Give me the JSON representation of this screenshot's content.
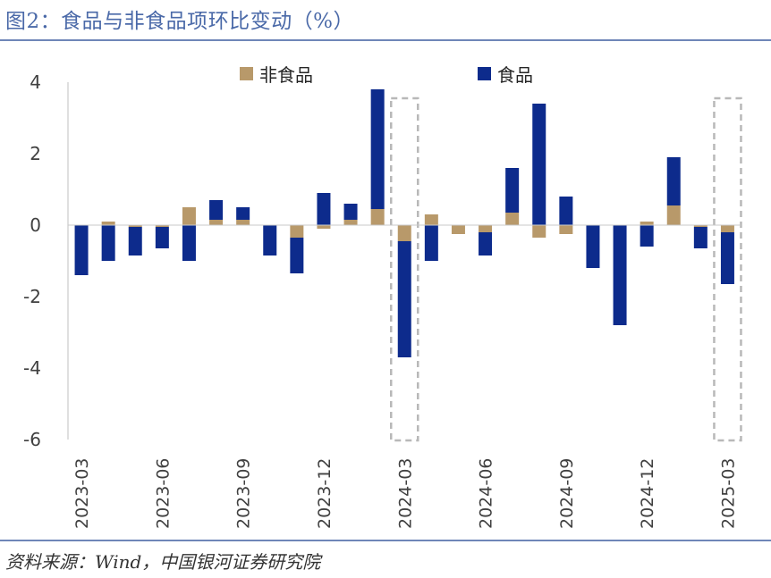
{
  "title": "图2：食品与非食品项环比变动（%）",
  "source": "资料来源：Wind，中国银河证券研究院",
  "chart_data": {
    "type": "bar",
    "stacked": true,
    "categories": [
      "2023-03",
      "2023-04",
      "2023-05",
      "2023-06",
      "2023-07",
      "2023-08",
      "2023-09",
      "2023-10",
      "2023-11",
      "2023-12",
      "2024-01",
      "2024-02",
      "2024-03",
      "2024-04",
      "2024-05",
      "2024-06",
      "2024-07",
      "2024-08",
      "2024-09",
      "2024-10",
      "2024-11",
      "2024-12",
      "2025-01",
      "2025-02",
      "2025-03"
    ],
    "tick_labels": [
      "2023-03",
      "2023-06",
      "2023-09",
      "2023-12",
      "2024-03",
      "2024-06",
      "2024-09",
      "2024-12",
      "2025-03"
    ],
    "series": [
      {
        "name": "非食品",
        "color": "#b8996a",
        "values": [
          0.0,
          0.1,
          -0.05,
          -0.05,
          0.5,
          0.15,
          0.15,
          0.0,
          -0.35,
          -0.1,
          0.15,
          0.45,
          -0.45,
          0.3,
          -0.25,
          -0.2,
          0.35,
          -0.35,
          -0.25,
          0.0,
          0.0,
          0.1,
          0.55,
          -0.05,
          -0.2
        ]
      },
      {
        "name": "食品",
        "color": "#0d2b8c",
        "values": [
          -1.4,
          -1.0,
          -0.8,
          -0.6,
          -1.0,
          0.55,
          0.35,
          -0.85,
          -1.0,
          0.9,
          0.45,
          3.35,
          -3.25,
          -1.0,
          0.0,
          -0.65,
          1.25,
          3.4,
          0.8,
          -1.2,
          -2.8,
          -0.6,
          1.35,
          -0.6,
          -1.45
        ]
      }
    ],
    "ylim": [
      -6,
      4
    ],
    "yticks": [
      4,
      2,
      0,
      -2,
      -4,
      -6
    ],
    "highlight_categories": [
      "2024-03",
      "2025-03"
    ],
    "legend_position": "top"
  }
}
